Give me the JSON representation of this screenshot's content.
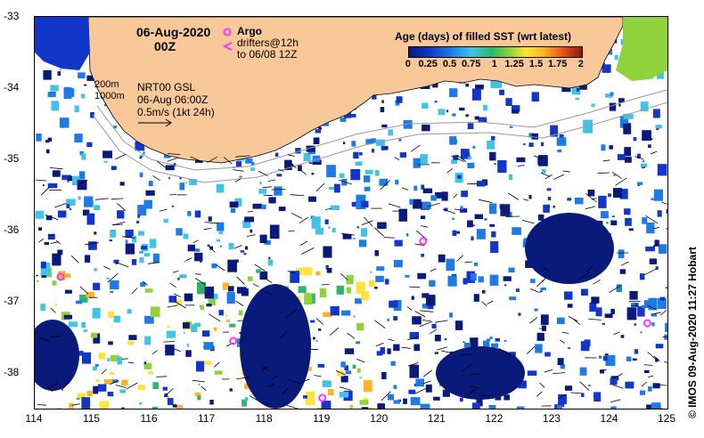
{
  "map": {
    "date": "06-Aug-2020",
    "hour": "00Z",
    "argo_label": "Argo",
    "drifters_line1": "drifters@12h",
    "drifters_line2": "to 06/08 12Z",
    "contour_200": "200m",
    "contour_1000": "1000m",
    "product": "NRT00 GSL",
    "product_time": "06-Aug 06:00Z",
    "vector_scale": "0.5m/s (1kt 24h)",
    "copyright": "© IMOS 09-Aug-2020 11:27 Hobart",
    "lon_labels": [
      "114",
      "115",
      "116",
      "117",
      "118",
      "119",
      "120",
      "121",
      "122",
      "123",
      "124",
      "125"
    ],
    "lat_labels": [
      "-33",
      "-34",
      "-35",
      "-36",
      "-37",
      "-38"
    ],
    "lon_range": [
      114,
      125
    ],
    "lat_range": [
      -38.5,
      -33
    ]
  },
  "legend": {
    "title": "Age (days) of filled SST (wrt latest)",
    "ticks": [
      "0",
      "0.25",
      "0.5",
      "0.75",
      "1",
      "1.25",
      "1.5",
      "1.75",
      "2"
    ],
    "range": [
      0,
      2
    ]
  },
  "colors": {
    "land": "#f8c898",
    "ocean": "#ffffff",
    "argo": "#ff33ff",
    "scale": [
      "#0a1a7a",
      "#1237c8",
      "#1e7be6",
      "#3fc4e8",
      "#2fb56a",
      "#8fd23c",
      "#ffe23a",
      "#ffb226",
      "#e85a1c",
      "#8a1a0c"
    ]
  },
  "argo_floats": [
    {
      "lon": 114.45,
      "lat": -36.65
    },
    {
      "lon": 117.45,
      "lat": -37.55
    },
    {
      "lon": 120.75,
      "lat": -36.15
    },
    {
      "lon": 124.65,
      "lat": -37.3
    },
    {
      "lon": 119.0,
      "lat": -38.35
    }
  ]
}
